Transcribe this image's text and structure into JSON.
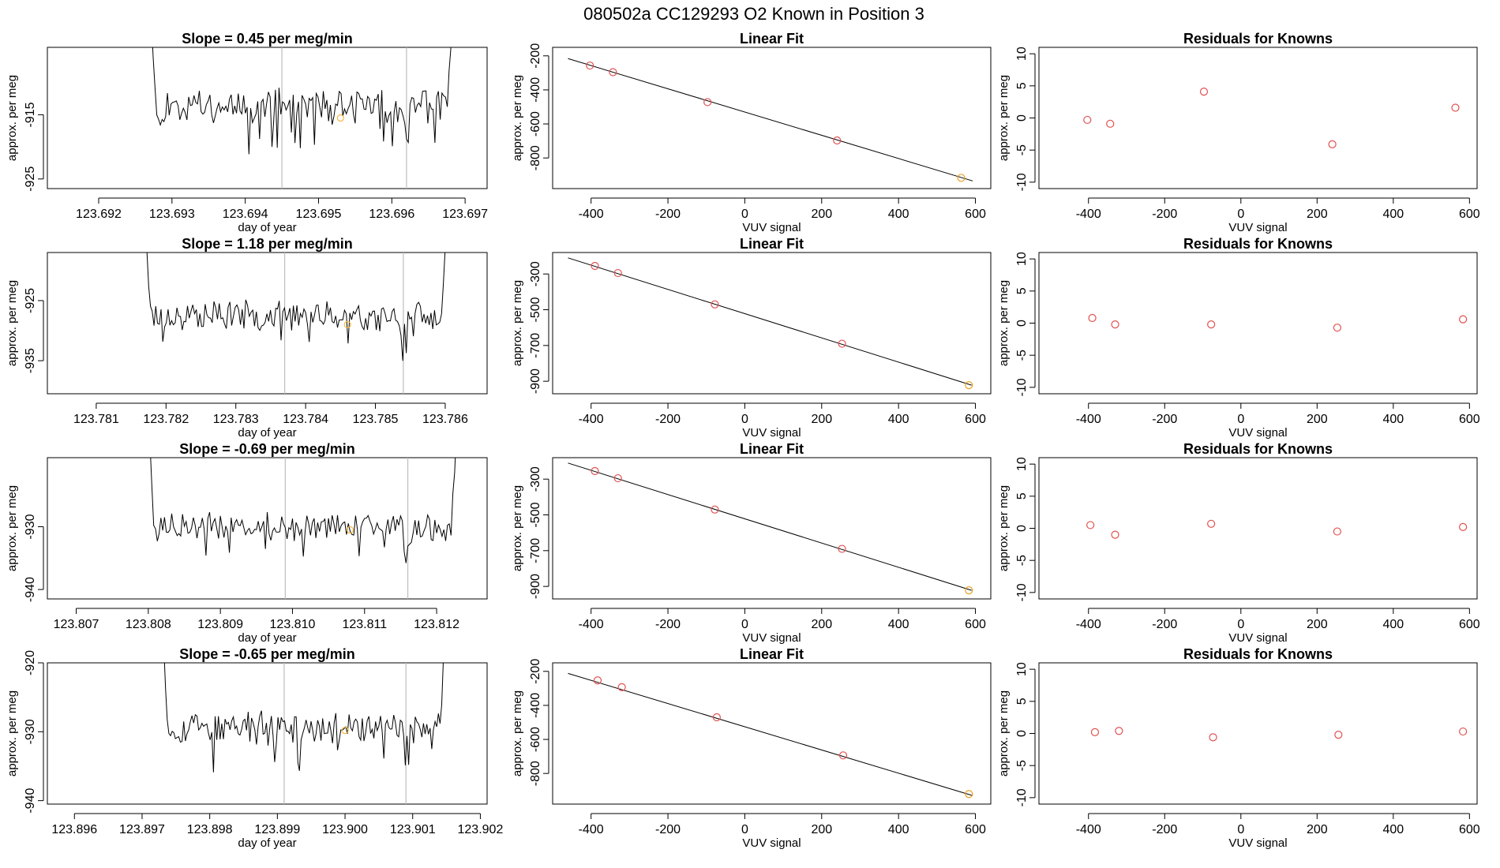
{
  "title": "080502a      CC129293   O2 Known in Position  3",
  "colors": {
    "point": "#e35050",
    "last_point": "#e8a020",
    "marker": "#f5b942",
    "trace": "#000000",
    "vline": "#bdbdbd"
  },
  "chart_data": [
    {
      "type": "line",
      "panel": "timeseries",
      "row": 0,
      "title": "Slope =  0.45  per meg/min",
      "xlabel": "day of year",
      "ylabel": "approx. per meg",
      "xlim": [
        123.6913,
        123.6973
      ],
      "ylim": [
        -926.5,
        -904.5
      ],
      "xticks": [
        123.692,
        123.693,
        123.694,
        123.695,
        123.696,
        123.697
      ],
      "xtick_labels": [
        "123.692",
        "123.693",
        "123.694",
        "123.695",
        "123.696",
        "123.697"
      ],
      "yticks": [
        -925,
        -915
      ],
      "ytick_labels": [
        "-925",
        "-915"
      ],
      "x_start": 123.6926,
      "x_end": 123.69695,
      "baseline": -913.5,
      "noise": 2.2,
      "seed": 11,
      "vlines": [
        123.6945,
        123.6962
      ],
      "marker": {
        "x": 123.6953,
        "y": -915.5
      }
    },
    {
      "type": "scatter",
      "panel": "linear-fit",
      "row": 0,
      "title": "Linear Fit",
      "xlabel": "VUV signal",
      "ylabel": "approx. per meg",
      "xlim": [
        -500,
        640
      ],
      "ylim": [
        -980,
        -150
      ],
      "xticks": [
        -400,
        -200,
        0,
        200,
        400,
        600
      ],
      "xtick_labels": [
        "-400",
        "-200",
        "0",
        "200",
        "400",
        "600"
      ],
      "yticks": [
        -800,
        -600,
        -400,
        -200
      ],
      "ytick_labels": [
        "-800",
        "-600",
        "-400",
        "-200"
      ],
      "x": [
        -403,
        -343,
        -97,
        240,
        563
      ],
      "y": [
        -257,
        -296,
        -472,
        -697,
        -917
      ],
      "fit_line": {
        "x": [
          -460,
          593
        ],
        "y": [
          -216,
          -935
        ]
      }
    },
    {
      "type": "scatter",
      "panel": "residuals",
      "row": 0,
      "title": "Residuals for Knowns",
      "xlabel": "VUV signal",
      "ylabel": "approx. per meg",
      "xlim": [
        -530,
        620
      ],
      "ylim": [
        -11,
        11
      ],
      "xticks": [
        -400,
        -200,
        0,
        200,
        400,
        600
      ],
      "xtick_labels": [
        "-400",
        "-200",
        "0",
        "200",
        "400",
        "600"
      ],
      "yticks": [
        -10,
        -5,
        0,
        5,
        10
      ],
      "ytick_labels": [
        "-10",
        "-5",
        "0",
        "5",
        "10"
      ],
      "x": [
        -403,
        -343,
        -97,
        240,
        563
      ],
      "y": [
        -0.3,
        -0.9,
        4.1,
        -4.1,
        1.6
      ]
    },
    {
      "type": "line",
      "panel": "timeseries",
      "row": 1,
      "title": "Slope =  1.18  per meg/min",
      "xlabel": "day of year",
      "ylabel": "approx. per meg",
      "xlim": [
        123.7803,
        123.7866
      ],
      "ylim": [
        -940.5,
        -917
      ],
      "xticks": [
        123.781,
        123.782,
        123.783,
        123.784,
        123.785,
        123.786
      ],
      "xtick_labels": [
        "123.781",
        "123.782",
        "123.783",
        "123.784",
        "123.785",
        "123.786"
      ],
      "yticks": [
        -935,
        -925
      ],
      "ytick_labels": [
        "-935",
        "-925"
      ],
      "x_start": 123.7816,
      "x_end": 123.78615,
      "baseline": -927.5,
      "noise": 2.0,
      "seed": 23,
      "vlines": [
        123.7837,
        123.7854
      ],
      "marker": {
        "x": 123.7846,
        "y": -929
      }
    },
    {
      "type": "scatter",
      "panel": "linear-fit",
      "row": 1,
      "title": "Linear Fit",
      "xlabel": "VUV signal",
      "ylabel": "approx. per meg",
      "xlim": [
        -500,
        640
      ],
      "ylim": [
        -970,
        -180
      ],
      "xticks": [
        -400,
        -200,
        0,
        200,
        400,
        600
      ],
      "xtick_labels": [
        "-400",
        "-200",
        "0",
        "200",
        "400",
        "600"
      ],
      "yticks": [
        -900,
        -700,
        -500,
        -300
      ],
      "ytick_labels": [
        "-900",
        "-700",
        "-500",
        "-300"
      ],
      "x": [
        -390,
        -330,
        -78,
        253,
        583
      ],
      "y": [
        -255,
        -295,
        -470,
        -690,
        -922
      ],
      "fit_line": {
        "x": [
          -460,
          590
        ],
        "y": [
          -210,
          -922
        ]
      }
    },
    {
      "type": "scatter",
      "panel": "residuals",
      "row": 1,
      "title": "Residuals for Knowns",
      "xlabel": "VUV signal",
      "ylabel": "approx. per meg",
      "xlim": [
        -530,
        620
      ],
      "ylim": [
        -11,
        11
      ],
      "xticks": [
        -400,
        -200,
        0,
        200,
        400,
        600
      ],
      "xtick_labels": [
        "-400",
        "-200",
        "0",
        "200",
        "400",
        "600"
      ],
      "yticks": [
        -10,
        -5,
        0,
        5,
        10
      ],
      "ytick_labels": [
        "-10",
        "-5",
        "0",
        "5",
        "10"
      ],
      "x": [
        -390,
        -330,
        -78,
        253,
        583
      ],
      "y": [
        0.8,
        -0.2,
        -0.2,
        -0.7,
        0.6
      ]
    },
    {
      "type": "line",
      "panel": "timeseries",
      "row": 2,
      "title": "Slope =  -0.69  per meg/min",
      "xlabel": "day of year",
      "ylabel": "approx. per meg",
      "xlim": [
        123.8066,
        123.8127
      ],
      "ylim": [
        -941.5,
        -919
      ],
      "xticks": [
        123.807,
        123.808,
        123.809,
        123.81,
        123.811,
        123.812
      ],
      "xtick_labels": [
        "123.807",
        "123.808",
        "123.809",
        "123.810",
        "123.811",
        "123.812"
      ],
      "yticks": [
        -940,
        -930
      ],
      "ytick_labels": [
        "-940",
        "-930"
      ],
      "x_start": 123.8079,
      "x_end": 123.8124,
      "baseline": -930,
      "noise": 1.8,
      "seed": 37,
      "vlines": [
        123.8099,
        123.8116
      ],
      "marker": {
        "x": 123.8108,
        "y": -930.5
      }
    },
    {
      "type": "scatter",
      "panel": "linear-fit",
      "row": 2,
      "title": "Linear Fit",
      "xlabel": "VUV signal",
      "ylabel": "approx. per meg",
      "xlim": [
        -500,
        640
      ],
      "ylim": [
        -970,
        -180
      ],
      "xticks": [
        -400,
        -200,
        0,
        200,
        400,
        600
      ],
      "xtick_labels": [
        "-400",
        "-200",
        "0",
        "200",
        "400",
        "600"
      ],
      "yticks": [
        -900,
        -700,
        -500,
        -300
      ],
      "ytick_labels": [
        "-900",
        "-700",
        "-500",
        "-300"
      ],
      "x": [
        -390,
        -330,
        -78,
        253,
        583
      ],
      "y": [
        -255,
        -295,
        -470,
        -690,
        -922
      ],
      "fit_line": {
        "x": [
          -460,
          590
        ],
        "y": [
          -210,
          -922
        ]
      }
    },
    {
      "type": "scatter",
      "panel": "residuals",
      "row": 2,
      "title": "Residuals for Knowns",
      "xlabel": "VUV signal",
      "ylabel": "approx. per meg",
      "xlim": [
        -530,
        620
      ],
      "ylim": [
        -11,
        11
      ],
      "xticks": [
        -400,
        -200,
        0,
        200,
        400,
        600
      ],
      "xtick_labels": [
        "-400",
        "-200",
        "0",
        "200",
        "400",
        "600"
      ],
      "yticks": [
        -10,
        -5,
        0,
        5,
        10
      ],
      "ytick_labels": [
        "-10",
        "-5",
        "0",
        "5",
        "10"
      ],
      "x": [
        -395,
        -330,
        -78,
        253,
        583
      ],
      "y": [
        0.5,
        -1.0,
        0.7,
        -0.5,
        0.2
      ]
    },
    {
      "type": "line",
      "panel": "timeseries",
      "row": 3,
      "title": "Slope =  -0.65  per meg/min",
      "xlabel": "day of year",
      "ylabel": "approx. per meg",
      "xlim": [
        123.8956,
        123.9021
      ],
      "ylim": [
        -940.5,
        -920
      ],
      "xticks": [
        123.896,
        123.897,
        123.898,
        123.899,
        123.9,
        123.901,
        123.902
      ],
      "xtick_labels": [
        "123.896",
        "123.897",
        "123.898",
        "123.899",
        "123.900",
        "123.901",
        "123.902"
      ],
      "yticks": [
        -940,
        -930,
        -920
      ],
      "ytick_labels": [
        "-940",
        "-930",
        "-920"
      ],
      "x_start": 123.8972,
      "x_end": 123.9016,
      "baseline": -929.5,
      "noise": 1.9,
      "seed": 53,
      "vlines": [
        123.8991,
        123.9009
      ],
      "marker": {
        "x": 123.9,
        "y": -929.8
      }
    },
    {
      "type": "scatter",
      "panel": "linear-fit",
      "row": 3,
      "title": "Linear Fit",
      "xlabel": "VUV signal",
      "ylabel": "approx. per meg",
      "xlim": [
        -500,
        640
      ],
      "ylim": [
        -980,
        -150
      ],
      "xticks": [
        -400,
        -200,
        0,
        200,
        400,
        600
      ],
      "xtick_labels": [
        "-400",
        "-200",
        "0",
        "200",
        "400",
        "600"
      ],
      "yticks": [
        -800,
        -600,
        -400,
        -200
      ],
      "ytick_labels": [
        "-800",
        "-600",
        "-400",
        "-200"
      ],
      "x": [
        -383,
        -320,
        -73,
        256,
        583
      ],
      "y": [
        -253,
        -293,
        -470,
        -694,
        -921
      ],
      "fit_line": {
        "x": [
          -460,
          593
        ],
        "y": [
          -212,
          -930
        ]
      }
    },
    {
      "type": "scatter",
      "panel": "residuals",
      "row": 3,
      "title": "Residuals for Knowns",
      "xlabel": "VUV signal",
      "ylabel": "approx. per meg",
      "xlim": [
        -530,
        620
      ],
      "ylim": [
        -11,
        11
      ],
      "xticks": [
        -400,
        -200,
        0,
        200,
        400,
        600
      ],
      "xtick_labels": [
        "-400",
        "-200",
        "0",
        "200",
        "400",
        "600"
      ],
      "yticks": [
        -10,
        -5,
        0,
        5,
        10
      ],
      "ytick_labels": [
        "-10",
        "-5",
        "0",
        "5",
        "10"
      ],
      "x": [
        -383,
        -320,
        -73,
        256,
        583
      ],
      "y": [
        0.2,
        0.4,
        -0.6,
        -0.2,
        0.3
      ]
    }
  ]
}
